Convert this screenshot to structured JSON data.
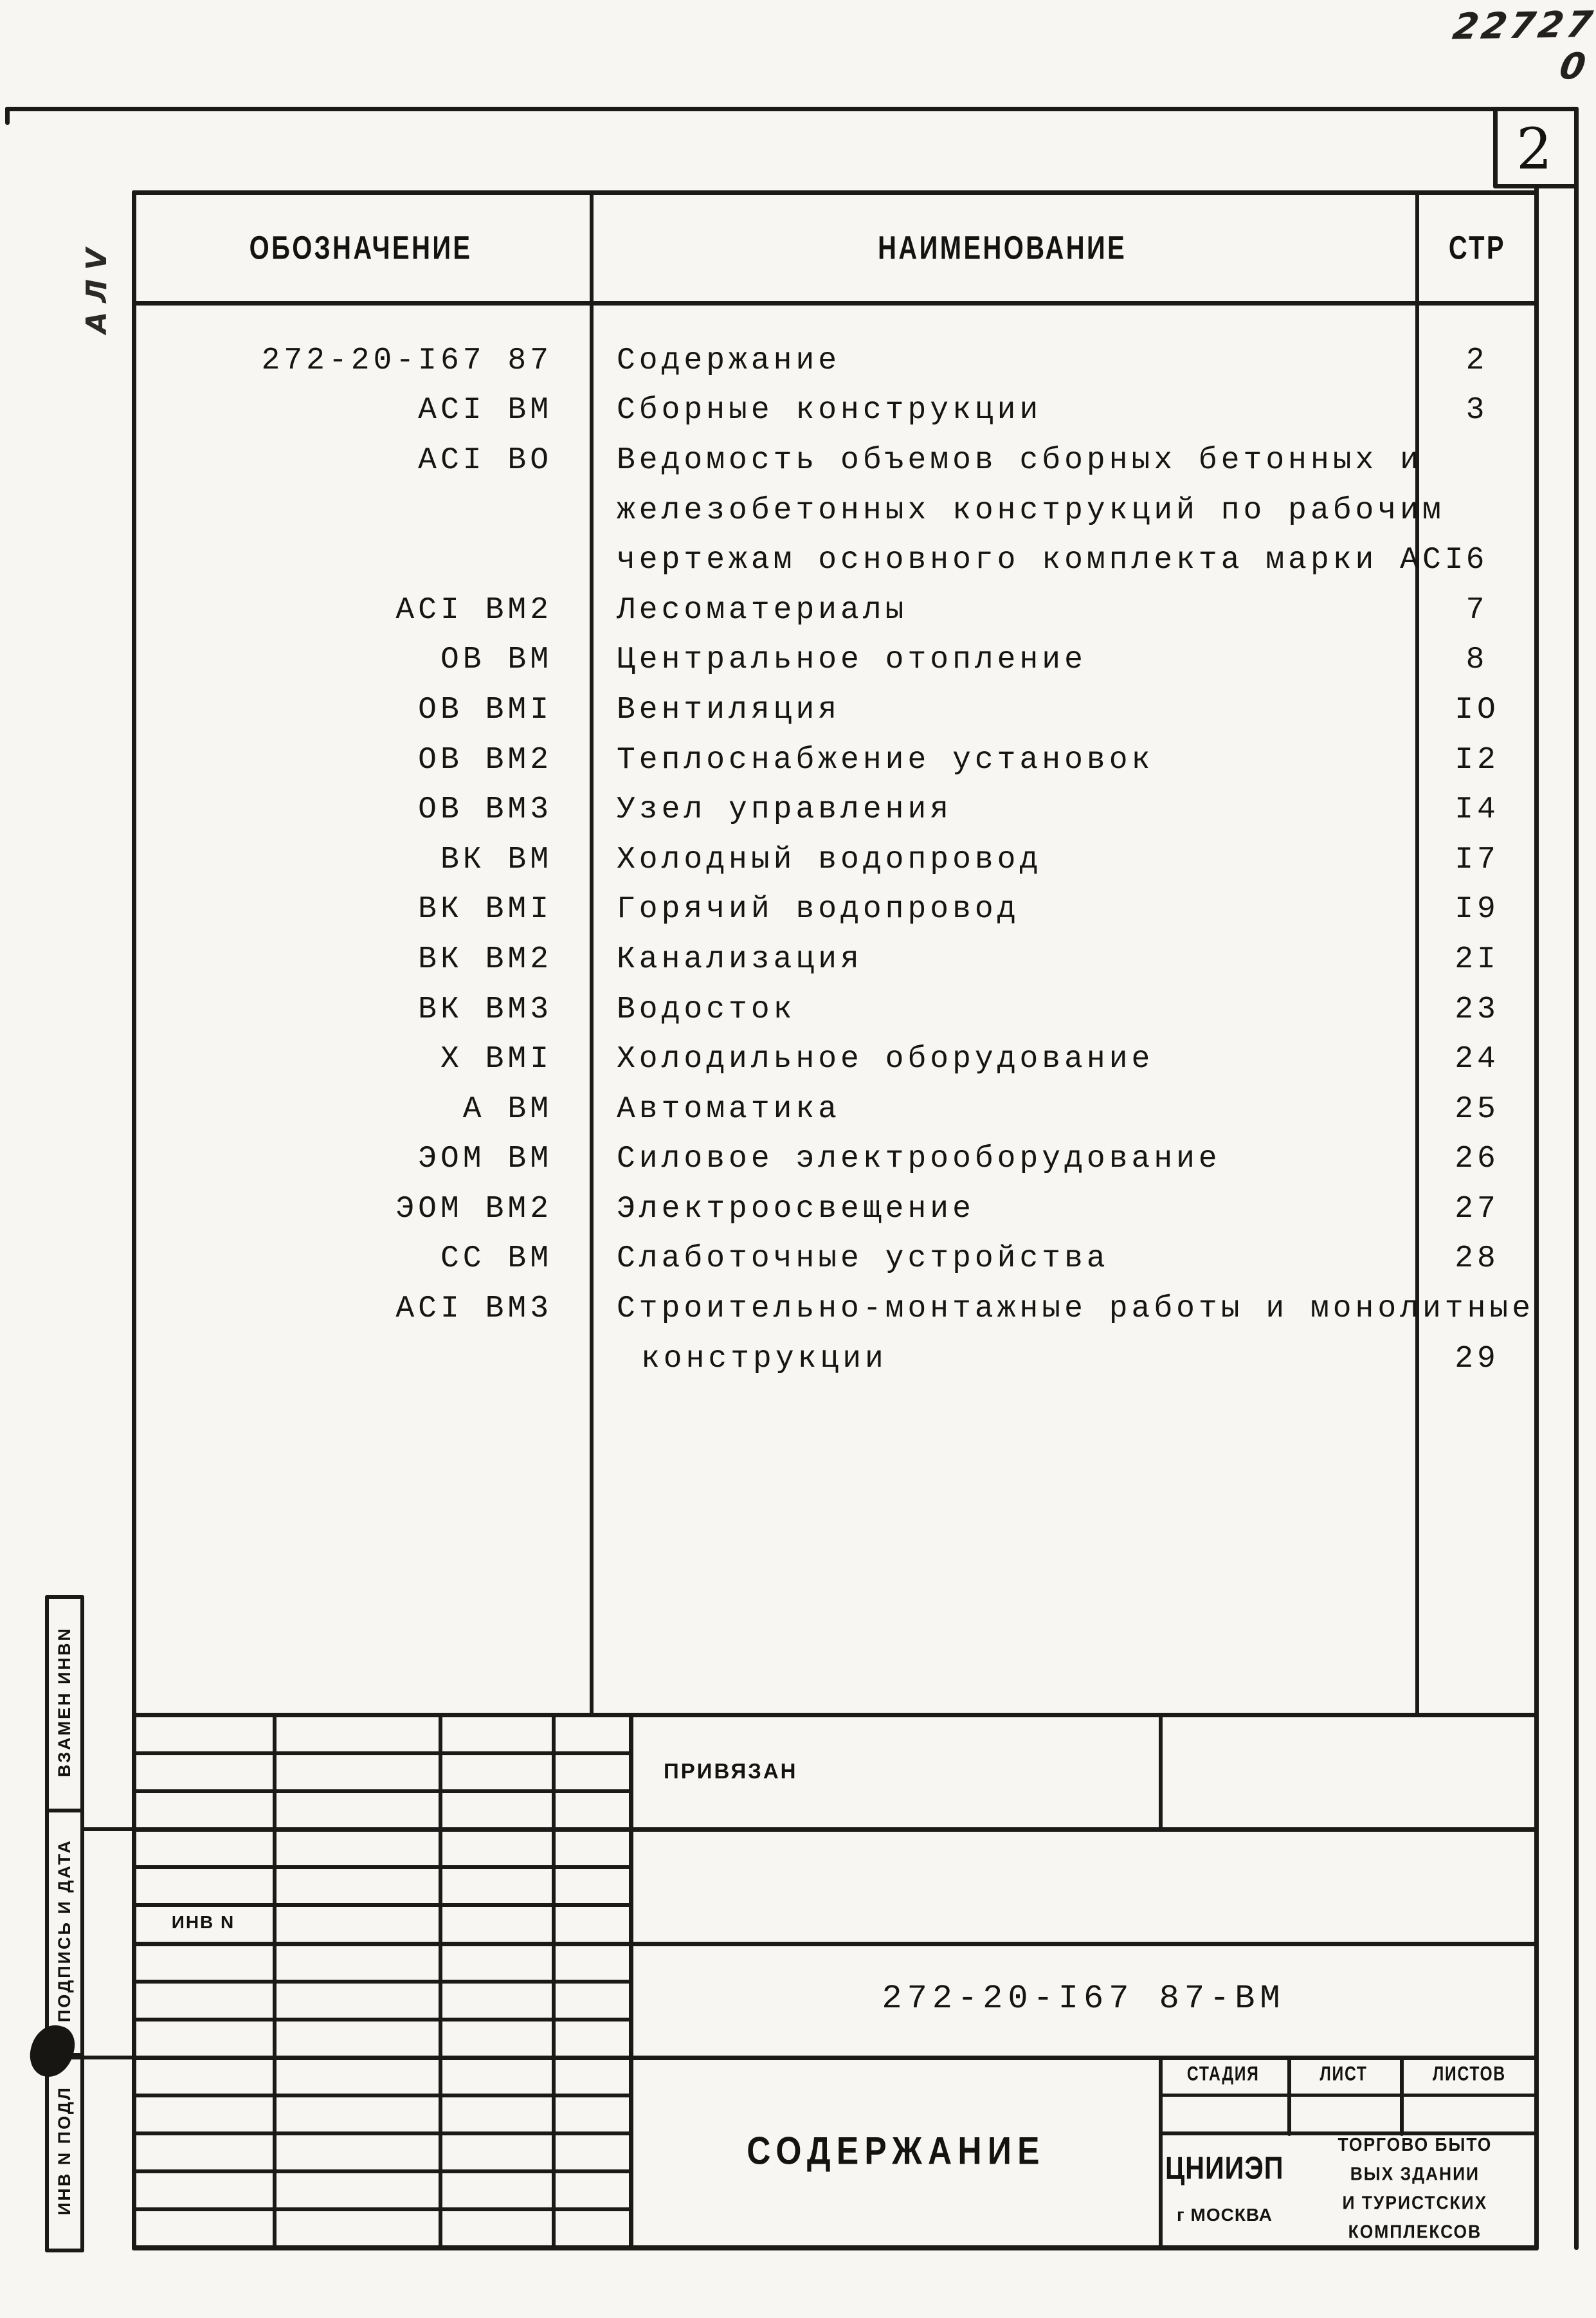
{
  "page": {
    "handwritten_number": "22727 0",
    "sheet_number": "2",
    "pencil_annotation": "АЛV"
  },
  "table": {
    "headers": {
      "designation": "ОБОЗНАЧЕНИЕ",
      "name": "НАИМЕНОВАНИЕ",
      "page": "СТР"
    },
    "rows": [
      {
        "designation": "272-20-I67 87",
        "name": "Содержание",
        "page": "2"
      },
      {
        "designation": "АСI ВМ",
        "name": "Сборные конструкции",
        "page": "3"
      },
      {
        "designation": "АСI ВО",
        "name": "Ведомость объемов сборных бетонных и",
        "page": ""
      },
      {
        "designation": "",
        "name": "железобетонных конструкций по рабочим",
        "page": ""
      },
      {
        "designation": "",
        "name": "чертежам основного комплекта марки АСI",
        "page": "6"
      },
      {
        "designation": "АСI ВМ2",
        "name": "Лесоматериалы",
        "page": "7"
      },
      {
        "designation": "ОВ ВМ",
        "name": "Центральное отопление",
        "page": "8"
      },
      {
        "designation": "ОВ ВМI",
        "name": "Вентиляция",
        "page": "IO"
      },
      {
        "designation": "ОВ ВМ2",
        "name": "Теплоснабжение установок",
        "page": "I2"
      },
      {
        "designation": "ОВ ВМ3",
        "name": "Узел управления",
        "page": "I4"
      },
      {
        "designation": "ВК ВМ",
        "name": "Холодный водопровод",
        "page": "I7"
      },
      {
        "designation": "ВК ВМI",
        "name": "Горячий водопровод",
        "page": "I9"
      },
      {
        "designation": "ВК ВМ2",
        "name": "Канализация",
        "page": "2I"
      },
      {
        "designation": "ВК ВМ3",
        "name": "Водосток",
        "page": "23"
      },
      {
        "designation": "Х ВМI",
        "name": "Холодильное оборудование",
        "page": "24"
      },
      {
        "designation": "А ВМ",
        "name": "Автоматика",
        "page": "25"
      },
      {
        "designation": "ЭОМ ВМ",
        "name": "Силовое электрооборудование",
        "page": "26"
      },
      {
        "designation": "ЭОМ ВМ2",
        "name": "Электроосвещение",
        "page": "27"
      },
      {
        "designation": "СС ВМ",
        "name": "Слаботочные устройства",
        "page": "28"
      },
      {
        "designation": "АСI ВМ3",
        "name": "Строительно-монтажные работы и монолитные",
        "page": ""
      },
      {
        "designation": "",
        "name": "конструкции",
        "page": "29"
      }
    ]
  },
  "title_block": {
    "privyazan_label": "ПРИВЯЗАН",
    "inv_label": "ИНВ N",
    "document_number": "272-20-I67 87-ВМ",
    "document_title": "СОДЕРЖАНИЕ",
    "stage_label": "СТАДИЯ",
    "sheet_label": "ЛИСТ",
    "sheets_label": "ЛИСТОВ",
    "org_name": "ЦНИИЭП",
    "org_city": "г МОСКВА",
    "org_dept_lines": {
      "0": "ТОРГОВО БЫТО",
      "1": "ВЫХ ЗДАНИИ",
      "2": "И ТУРИСТСКИХ",
      "3": "КОМПЛЕКСОВ"
    }
  },
  "margin": {
    "box1": "ВЗАМЕН ИНВN",
    "box2": "ПОДПИСЬ И ДАТА",
    "box3": "ИНВ N ПОДЛ"
  }
}
